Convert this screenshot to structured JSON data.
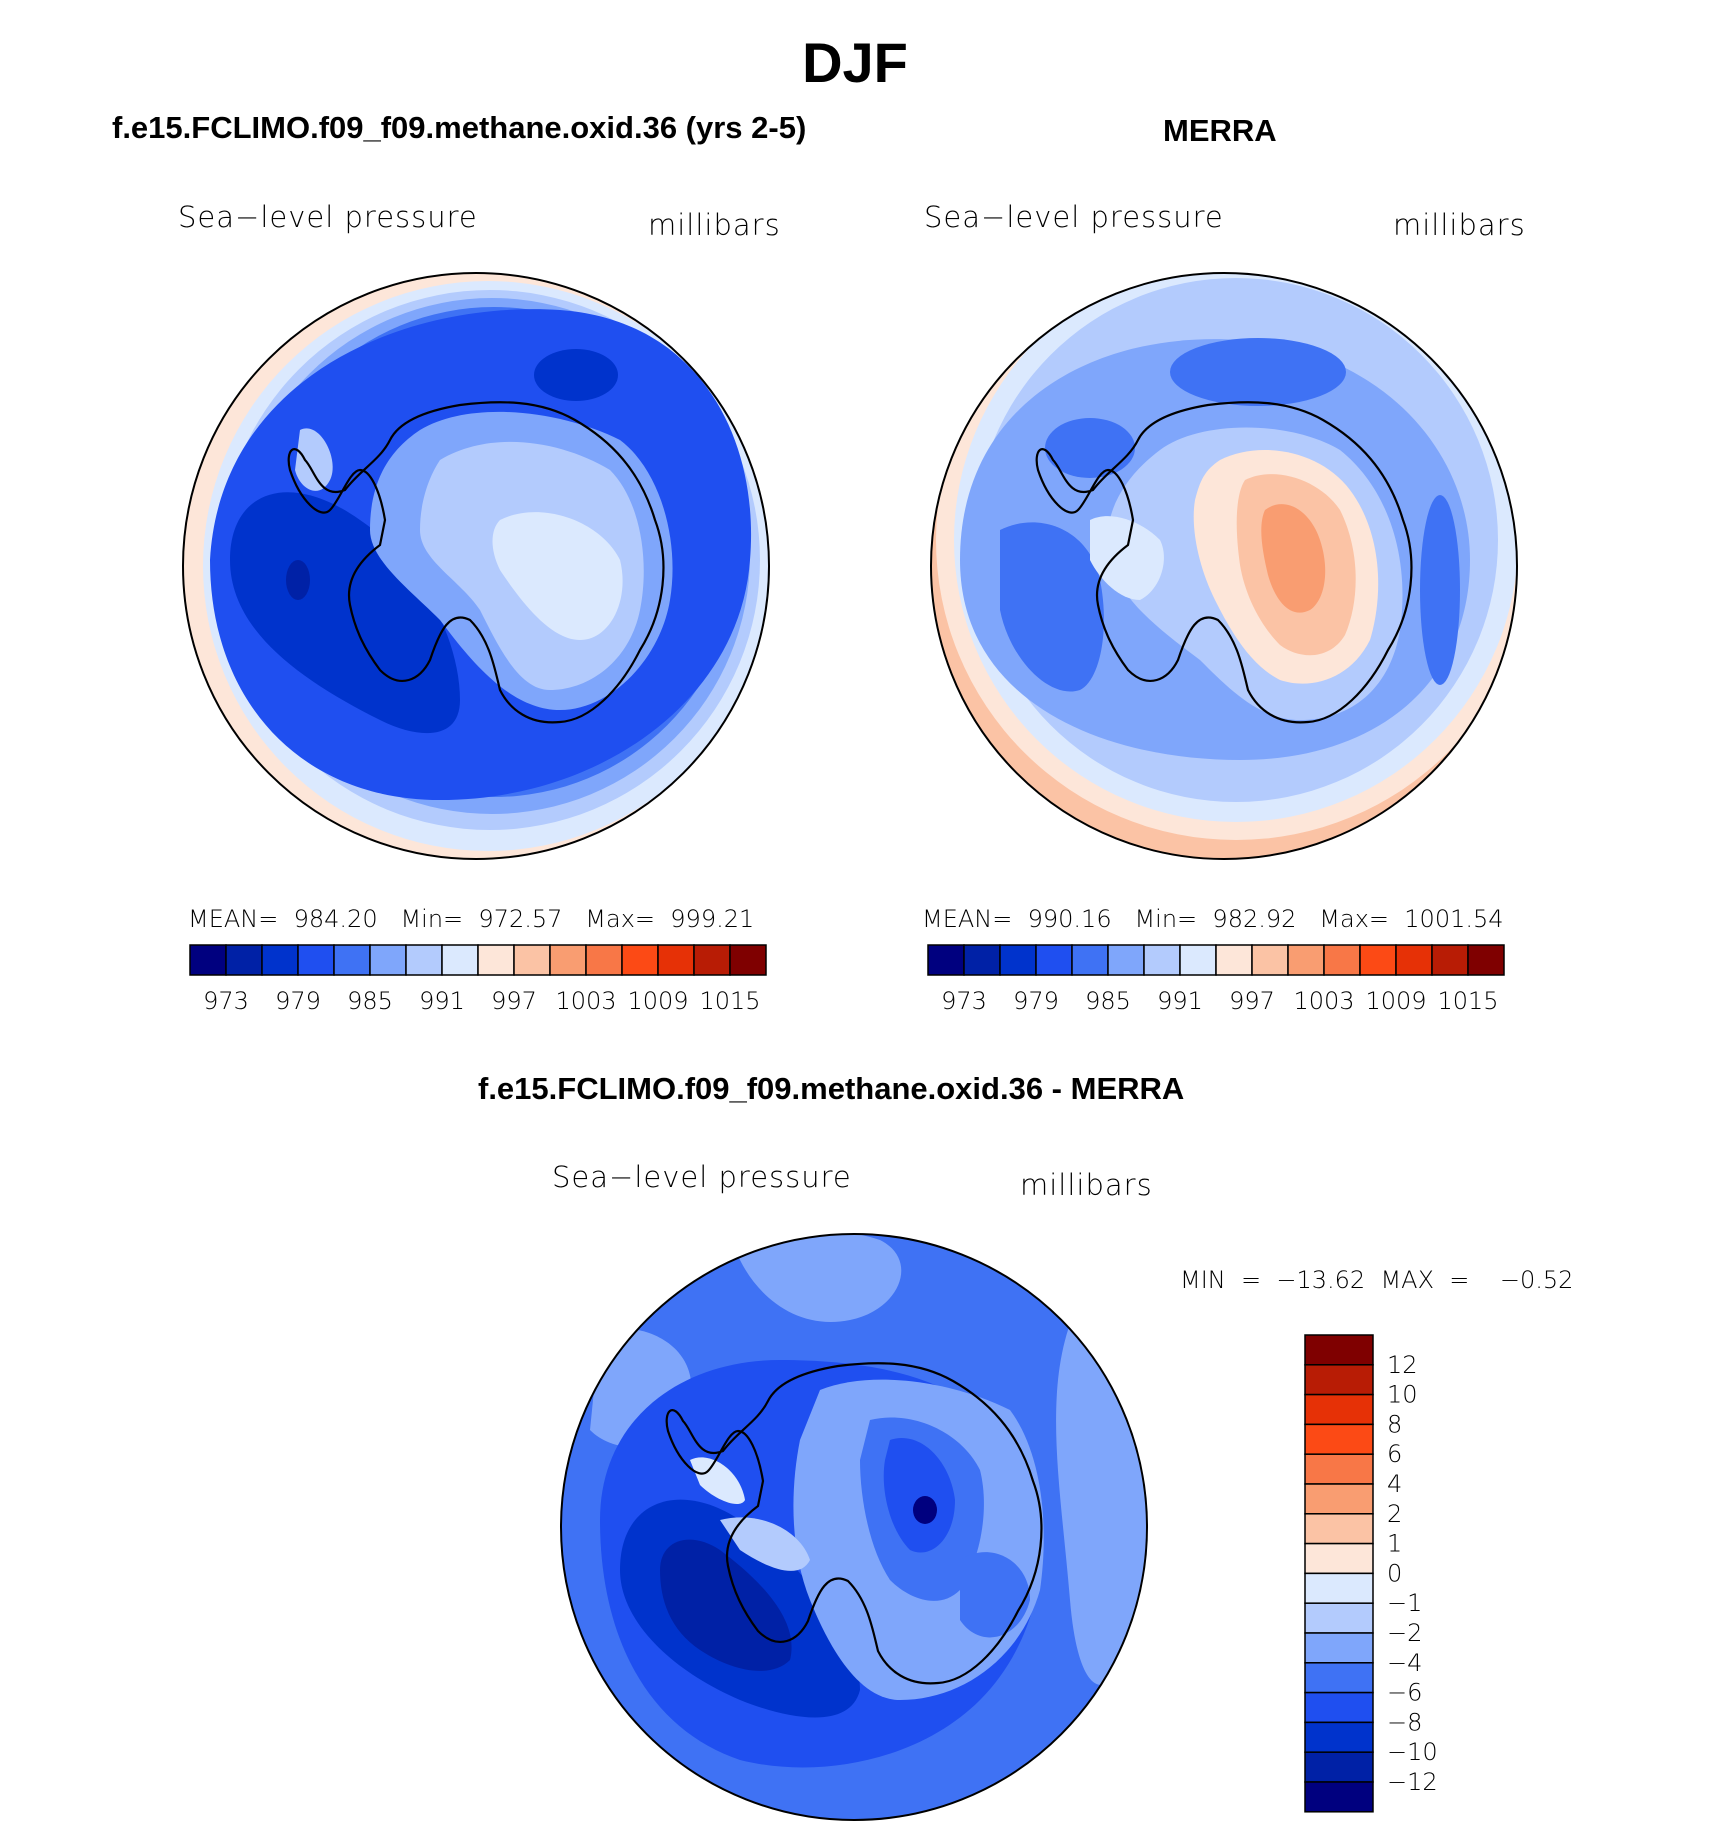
{
  "figure": {
    "title": "DJF"
  },
  "panels": [
    {
      "id": "model",
      "title": "f.e15.FCLIMO.f09_f09.methane.oxid.36 (yrs 2-5)",
      "label_left": "Sea−level pressure",
      "label_right": "millibars",
      "stats": "MEAN=  984.20   Min=  972.57   Max=  999.21",
      "colorbar": {
        "colors": [
          "#00007f",
          "#0021a6",
          "#0033cc",
          "#1f4ff0",
          "#3f72f4",
          "#7fa6fb",
          "#b3cbfd",
          "#dbe9fe",
          "#fde6d9",
          "#fbc3a5",
          "#f99d71",
          "#f87747",
          "#fc4a15",
          "#e63106",
          "#b81c05",
          "#7f0000"
        ],
        "labels": [
          "973",
          "979",
          "985",
          "991",
          "997",
          "1003",
          "1009",
          "1015"
        ]
      }
    },
    {
      "id": "obs",
      "title": "MERRA",
      "label_left": "Sea−level pressure",
      "label_right": "millibars",
      "stats": "MEAN=  990.16   Min=  982.92   Max=  1001.54",
      "colorbar": {
        "colors": [
          "#00007f",
          "#0021a6",
          "#0033cc",
          "#1f4ff0",
          "#3f72f4",
          "#7fa6fb",
          "#b3cbfd",
          "#dbe9fe",
          "#fde6d9",
          "#fbc3a5",
          "#f99d71",
          "#f87747",
          "#fc4a15",
          "#e63106",
          "#b81c05",
          "#7f0000"
        ],
        "labels": [
          "973",
          "979",
          "985",
          "991",
          "997",
          "1003",
          "1009",
          "1015"
        ]
      }
    },
    {
      "id": "diff",
      "title": "f.e15.FCLIMO.f09_f09.methane.oxid.36 - MERRA",
      "label_left": "Sea−level pressure",
      "label_right": "millibars",
      "stats": "MIN  =  −13.62  MAX  =    −0.52",
      "colorbar": {
        "colors_top_to_bottom": [
          "#7f0000",
          "#b81c05",
          "#e63106",
          "#fc4a15",
          "#f87747",
          "#f99d71",
          "#fbc3a5",
          "#fde6d9",
          "#dbe9fe",
          "#b3cbfd",
          "#7fa6fb",
          "#3f72f4",
          "#1f4ff0",
          "#0033cc",
          "#0021a6",
          "#00007f"
        ],
        "labels_top_to_bottom": [
          "12",
          "10",
          "8",
          "6",
          "4",
          "2",
          "1",
          "0",
          "−1",
          "−2",
          "−4",
          "−6",
          "−8",
          "−10",
          "−12"
        ]
      }
    }
  ]
}
